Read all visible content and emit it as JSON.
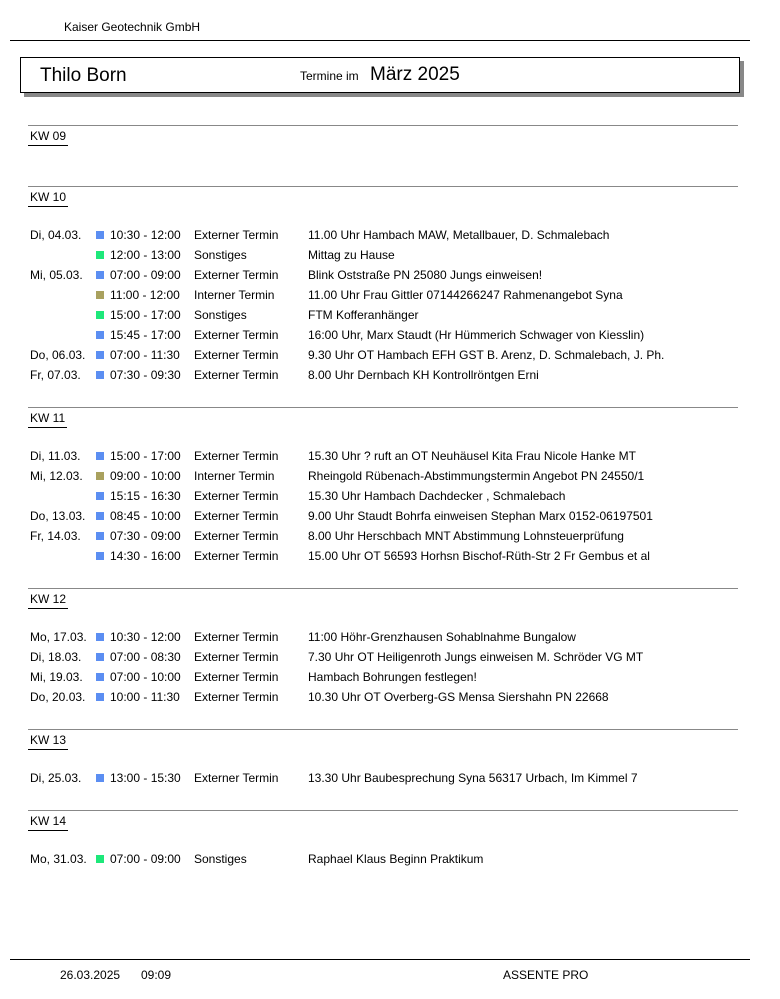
{
  "header": {
    "company": "Kaiser Geotechnik GmbH",
    "person": "Thilo Born",
    "termine_label": "Termine im",
    "month": "März 2025"
  },
  "colors": {
    "Externer Termin": "#5b8ef2",
    "Sonstiges": "#1de87a",
    "Interner Termin": "#a9a15e"
  },
  "weeks": [
    {
      "label": "KW 09",
      "entries": []
    },
    {
      "label": "KW 10",
      "entries": [
        {
          "date": "Di,  04.03.",
          "time": "10:30 - 12:00",
          "type": "Externer Termin",
          "desc": "11.00 Uhr Hambach MAW, Metallbauer, D. Schmalebach"
        },
        {
          "date": "",
          "time": "12:00 - 13:00",
          "type": "Sonstiges",
          "desc": "Mittag zu Hause"
        },
        {
          "date": "Mi,  05.03.",
          "time": "07:00 - 09:00",
          "type": "Externer Termin",
          "desc": "Blink Oststraße PN 25080 Jungs einweisen!"
        },
        {
          "date": "",
          "time": "11:00 - 12:00",
          "type": "Interner Termin",
          "desc": "11.00 Uhr Frau Gittler 07144266247 Rahmenangebot Syna"
        },
        {
          "date": "",
          "time": "15:00 - 17:00",
          "type": "Sonstiges",
          "desc": "FTM Kofferanhänger"
        },
        {
          "date": "",
          "time": "15:45 - 17:00",
          "type": "Externer Termin",
          "desc": "16:00 Uhr, Marx Staudt (Hr Hümmerich Schwager von Kiesslin)"
        },
        {
          "date": "Do, 06.03.",
          "time": "07:00 - 11:30",
          "type": "Externer Termin",
          "desc": "9.30 Uhr OT Hambach EFH GST B. Arenz, D. Schmalebach, J. Ph."
        },
        {
          "date": "Fr,  07.03.",
          "time": "07:30 - 09:30",
          "type": "Externer Termin",
          "desc": "8.00 Uhr Dernbach KH Kontrollröntgen Erni"
        }
      ]
    },
    {
      "label": "KW 11",
      "entries": [
        {
          "date": "Di,  11.03.",
          "time": "15:00 - 17:00",
          "type": "Externer Termin",
          "desc": "15.30 Uhr ? ruft an OT Neuhäusel Kita Frau Nicole Hanke MT"
        },
        {
          "date": "Mi,  12.03.",
          "time": "09:00 - 10:00",
          "type": "Interner Termin",
          "desc": "Rheingold Rübenach-Abstimmungstermin Angebot PN 24550/1"
        },
        {
          "date": "",
          "time": "15:15 - 16:30",
          "type": "Externer Termin",
          "desc": "15.30 Uhr Hambach Dachdecker , Schmalebach"
        },
        {
          "date": "Do, 13.03.",
          "time": "08:45 - 10:00",
          "type": "Externer Termin",
          "desc": "9.00 Uhr Staudt  Bohrfa einweisen Stephan Marx 0152-06197501"
        },
        {
          "date": "Fr,  14.03.",
          "time": "07:30 - 09:00",
          "type": "Externer Termin",
          "desc": "8.00 Uhr Herschbach MNT Abstimmung Lohnsteuerprüfung"
        },
        {
          "date": "",
          "time": "14:30 - 16:00",
          "type": "Externer Termin",
          "desc": "15.00 Uhr OT 56593 Horhsn Bischof-Rüth-Str 2 Fr Gembus et al"
        }
      ]
    },
    {
      "label": "KW 12",
      "entries": [
        {
          "date": "Mo, 17.03.",
          "time": "10:30 - 12:00",
          "type": "Externer Termin",
          "desc": "11:00 Höhr-Grenzhausen Sohablnahme Bungalow"
        },
        {
          "date": "Di,  18.03.",
          "time": "07:00 - 08:30",
          "type": "Externer Termin",
          "desc": "7.30 Uhr OT Heiligenroth Jungs einweisen M. Schröder VG MT"
        },
        {
          "date": "Mi,  19.03.",
          "time": "07:00 - 10:00",
          "type": "Externer Termin",
          "desc": "Hambach Bohrungen festlegen!"
        },
        {
          "date": "Do, 20.03.",
          "time": "10:00 - 11:30",
          "type": "Externer Termin",
          "desc": "10.30 Uhr OT Overberg-GS Mensa Siershahn PN 22668"
        }
      ]
    },
    {
      "label": "KW 13",
      "entries": [
        {
          "date": "Di,  25.03.",
          "time": "13:00 - 15:30",
          "type": "Externer Termin",
          "desc": "13.30 Uhr Baubesprechung Syna 56317 Urbach, Im Kimmel 7"
        }
      ]
    },
    {
      "label": "KW 14",
      "entries": [
        {
          "date": "Mo, 31.03.",
          "time": "07:00 - 09:00",
          "type": "Sonstiges",
          "desc": "Raphael Klaus Beginn Praktikum"
        }
      ]
    }
  ],
  "footer": {
    "date": "26.03.2025",
    "time": "09:09",
    "app": "ASSENTE PRO"
  }
}
